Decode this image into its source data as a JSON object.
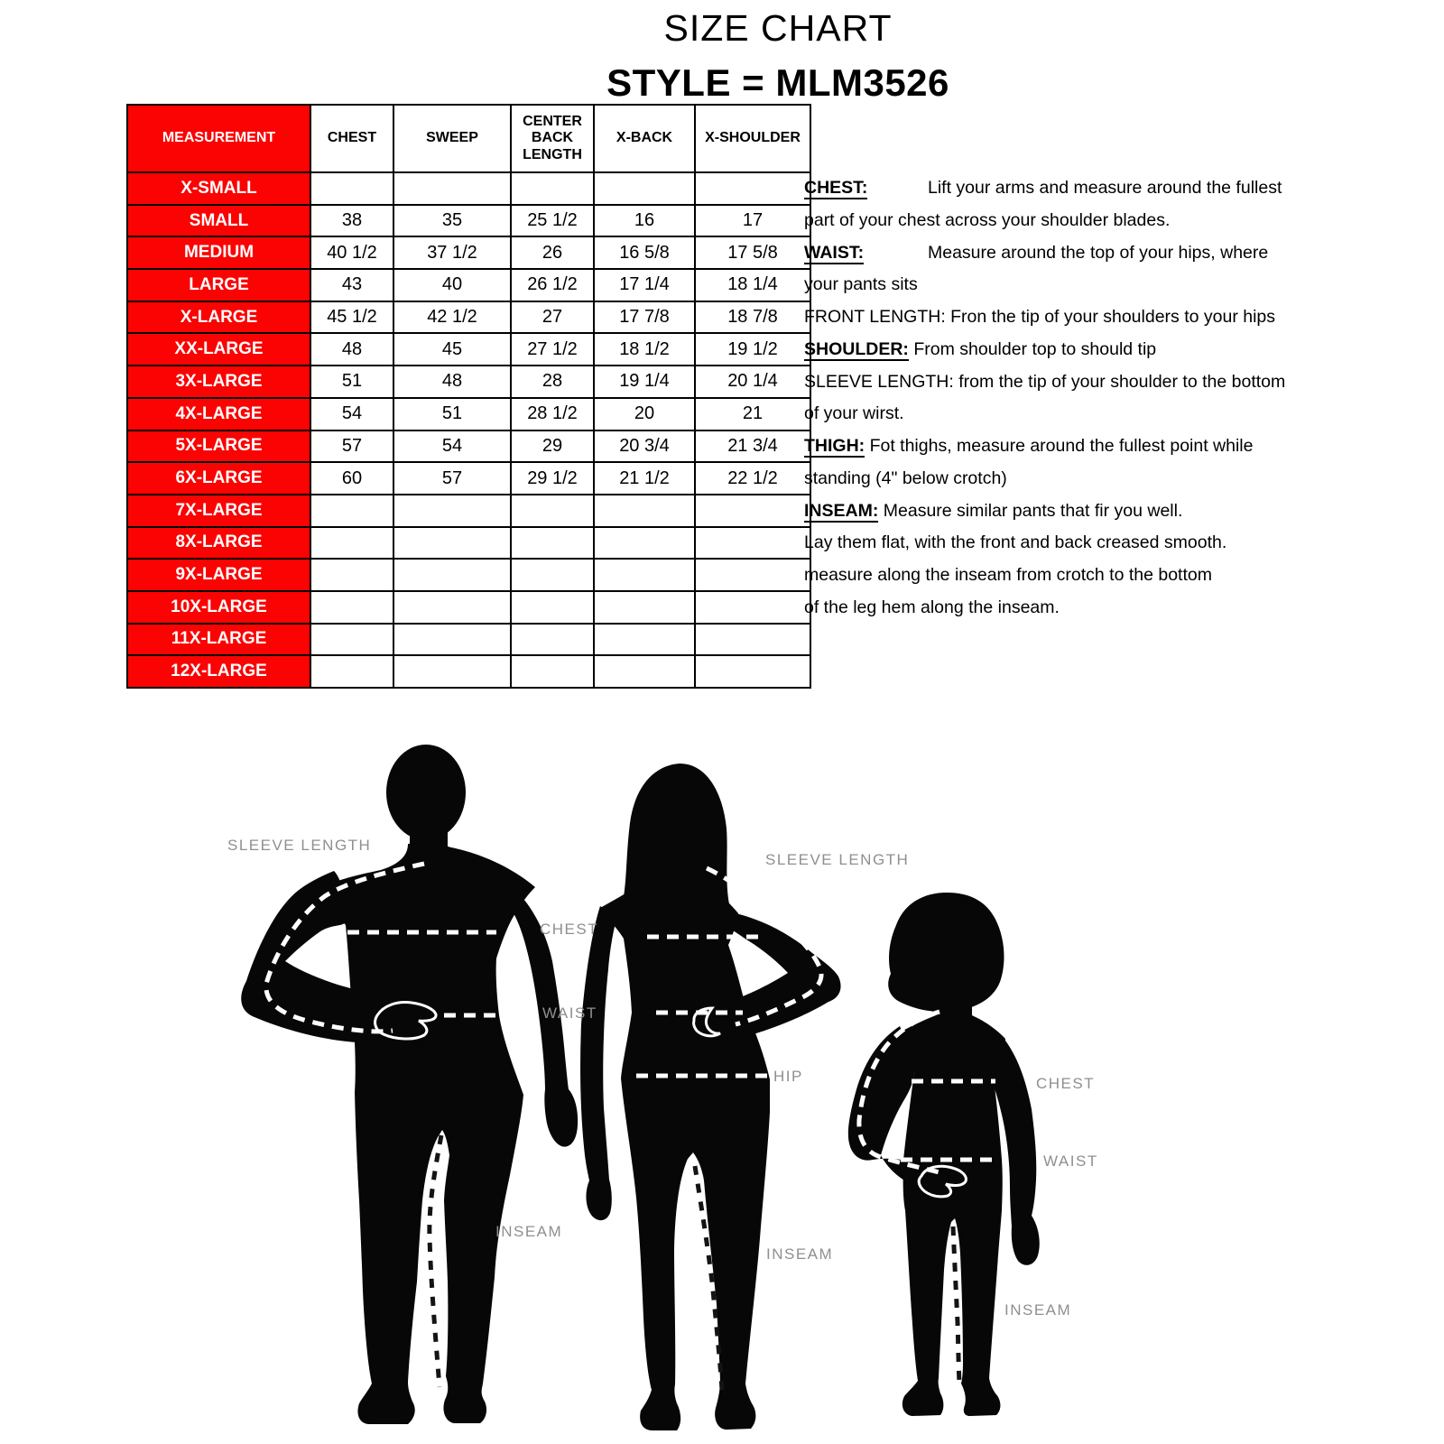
{
  "page": {
    "title_line1": "SIZE CHART",
    "title_line2": "STYLE = MLM3526"
  },
  "colors": {
    "accent_red": "#fb0303",
    "label_gray": "#8f8f8f",
    "silhouette_black": "#070707"
  },
  "size_table": {
    "columns": [
      "MEASUREMENT",
      "CHEST",
      "SWEEP",
      "CENTER BACK LENGTH",
      "X-BACK",
      "X-SHOULDER"
    ],
    "rows": [
      {
        "size": "X-SMALL",
        "values": [
          "",
          "",
          "",
          "",
          ""
        ]
      },
      {
        "size": "SMALL",
        "values": [
          "38",
          "35",
          "25 1/2",
          "16",
          "17"
        ]
      },
      {
        "size": "MEDIUM",
        "values": [
          "40 1/2",
          "37 1/2",
          "26",
          "16 5/8",
          "17 5/8"
        ]
      },
      {
        "size": "LARGE",
        "values": [
          "43",
          "40",
          "26 1/2",
          "17 1/4",
          "18 1/4"
        ]
      },
      {
        "size": "X-LARGE",
        "values": [
          "45 1/2",
          "42 1/2",
          "27",
          "17 7/8",
          "18 7/8"
        ]
      },
      {
        "size": "XX-LARGE",
        "values": [
          "48",
          "45",
          "27 1/2",
          "18 1/2",
          "19 1/2"
        ]
      },
      {
        "size": "3X-LARGE",
        "values": [
          "51",
          "48",
          "28",
          "19 1/4",
          "20 1/4"
        ]
      },
      {
        "size": "4X-LARGE",
        "values": [
          "54",
          "51",
          "28 1/2",
          "20",
          "21"
        ]
      },
      {
        "size": "5X-LARGE",
        "values": [
          "57",
          "54",
          "29",
          "20 3/4",
          "21 3/4"
        ]
      },
      {
        "size": "6X-LARGE",
        "values": [
          "60",
          "57",
          "29 1/2",
          "21 1/2",
          "22 1/2"
        ]
      },
      {
        "size": "7X-LARGE",
        "values": [
          "",
          "",
          "",
          "",
          ""
        ]
      },
      {
        "size": "8X-LARGE",
        "values": [
          "",
          "",
          "",
          "",
          ""
        ]
      },
      {
        "size": "9X-LARGE",
        "values": [
          "",
          "",
          "",
          "",
          ""
        ]
      },
      {
        "size": "10X-LARGE",
        "values": [
          "",
          "",
          "",
          "",
          ""
        ]
      },
      {
        "size": "11X-LARGE",
        "values": [
          "",
          "",
          "",
          "",
          ""
        ]
      },
      {
        "size": "12X-LARGE",
        "values": [
          "",
          "",
          "",
          "",
          ""
        ]
      }
    ]
  },
  "measure_guide": {
    "lines": [
      {
        "term": "CHEST:",
        "tab": true,
        "text": "Lift your arms and measure around the fullest"
      },
      {
        "text": "part of your chest across your shoulder blades."
      },
      {
        "term": "WAIST:",
        "tab": true,
        "text": "Measure around the top of  your hips, where"
      },
      {
        "text": "your pants sits"
      },
      {
        "text": "FRONT LENGTH: Fron the tip of your shoulders to your hips"
      },
      {
        "term": "SHOULDER:",
        "tab": false,
        "text": "From shoulder top to should tip"
      },
      {
        "text": "SLEEVE LENGTH: from the tip of your shoulder to the bottom"
      },
      {
        "text": "of your wirst."
      },
      {
        "term": "THIGH:",
        "tab": false,
        "text": "Fot thighs, measure around the fullest point while"
      },
      {
        "text": "standing (4\" below crotch)"
      },
      {
        "term": "INSEAM:",
        "tab": false,
        "text": "Measure similar pants that fir you well."
      },
      {
        "text": "Lay them flat, with the front and back creased smooth."
      },
      {
        "text": "measure along the inseam from crotch to the bottom"
      },
      {
        "text": "of the leg hem along the inseam."
      }
    ]
  },
  "figure_labels": {
    "man_sleeve": "SLEEVE LENGTH",
    "chest": "CHEST",
    "waist": "WAIST",
    "woman_sleeve": "SLEEVE LENGTH",
    "hip": "HIP",
    "child_chest": "CHEST",
    "child_waist": "WAIST",
    "man_inseam": "INSEAM",
    "woman_inseam": "INSEAM",
    "child_inseam": "INSEAM"
  }
}
